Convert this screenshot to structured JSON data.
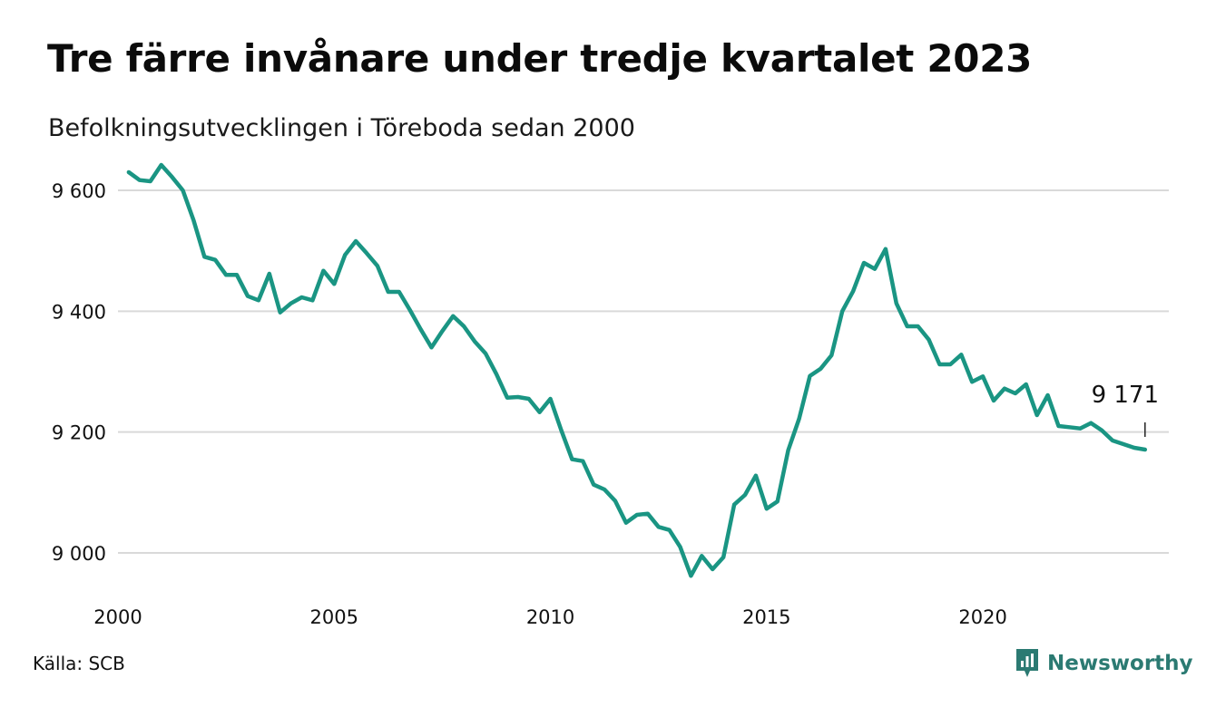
{
  "title": "Tre färre invånare under tredje kvartalet 2023",
  "subtitle": "Befolkningsutvecklingen i Töreboda sedan 2000",
  "source": "Källa: SCB",
  "brand": "Newsworthy",
  "colors": {
    "line": "#1a9583",
    "grid": "#d9d9d9",
    "brand": "#2b7a72"
  },
  "chart_data": {
    "type": "line",
    "title": "Tre färre invånare under tredje kvartalet 2023",
    "subtitle": "Befolkningsutvecklingen i Töreboda sedan 2000",
    "xlim": [
      2000,
      2024.3
    ],
    "ylim": [
      8940,
      9660
    ],
    "grid": true,
    "x_ticks": [
      2000,
      2005,
      2010,
      2015,
      2020
    ],
    "x_tick_labels": [
      "2000",
      "2005",
      "2010",
      "2015",
      "2020"
    ],
    "y_ticks": [
      9000,
      9200,
      9400,
      9600
    ],
    "y_tick_labels": [
      "9 000",
      "9 200",
      "9 400",
      "9 600"
    ],
    "last_value_label": "9 171",
    "x": [
      2000.25,
      2000.5,
      2000.75,
      2001.0,
      2001.25,
      2001.5,
      2001.75,
      2002.0,
      2002.25,
      2002.5,
      2002.75,
      2003.0,
      2003.25,
      2003.5,
      2003.75,
      2004.0,
      2004.25,
      2004.5,
      2004.75,
      2005.0,
      2005.25,
      2005.5,
      2005.75,
      2006.0,
      2006.25,
      2006.5,
      2006.75,
      2007.0,
      2007.25,
      2007.5,
      2007.75,
      2008.0,
      2008.25,
      2008.5,
      2008.75,
      2009.0,
      2009.25,
      2009.5,
      2009.75,
      2010.0,
      2010.25,
      2010.5,
      2010.75,
      2011.0,
      2011.25,
      2011.5,
      2011.75,
      2012.0,
      2012.25,
      2012.5,
      2012.75,
      2013.0,
      2013.25,
      2013.5,
      2013.75,
      2014.0,
      2014.25,
      2014.5,
      2014.75,
      2015.0,
      2015.25,
      2015.5,
      2015.75,
      2016.0,
      2016.25,
      2016.5,
      2016.75,
      2017.0,
      2017.25,
      2017.5,
      2017.75,
      2018.0,
      2018.25,
      2018.5,
      2018.75,
      2019.0,
      2019.25,
      2019.5,
      2019.75,
      2020.0,
      2020.25,
      2020.5,
      2020.75,
      2021.0,
      2021.25,
      2021.5,
      2021.75,
      2022.0,
      2022.25,
      2022.5,
      2022.75,
      2023.0,
      2023.25,
      2023.5,
      2023.75
    ],
    "series": [
      {
        "values": [
          9630,
          9617,
          9615,
          9642,
          9622,
          9600,
          9550,
          9490,
          9485,
          9460,
          9460,
          9425,
          9418,
          9462,
          9398,
          9413,
          9423,
          9418,
          9467,
          9445,
          9493,
          9516,
          9496,
          9475,
          9432,
          9432,
          9402,
          9370,
          9340,
          9367,
          9392,
          9375,
          9350,
          9330,
          9296,
          9257,
          9258,
          9255,
          9233,
          9255,
          9203,
          9155,
          9152,
          9113,
          9105,
          9086,
          9050,
          9063,
          9065,
          9043,
          9038,
          9010,
          8962,
          8995,
          8973,
          8993,
          9080,
          9096,
          9128,
          9073,
          9085,
          9170,
          9222,
          9293,
          9305,
          9327,
          9400,
          9433,
          9480,
          9470,
          9503,
          9413,
          9375,
          9375,
          9353,
          9312,
          9312,
          9328,
          9283,
          9292,
          9252,
          9272,
          9264,
          9279,
          9228,
          9261,
          9210,
          9208,
          9206,
          9215,
          9203,
          9186,
          9180,
          9174,
          9171
        ]
      }
    ]
  }
}
